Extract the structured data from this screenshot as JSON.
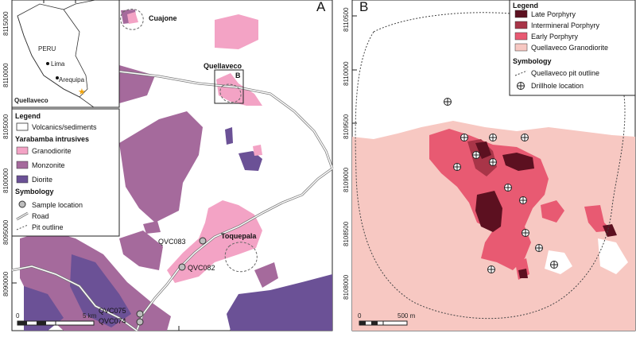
{
  "colors": {
    "granodiorite": "#f3a3c5",
    "monzonite": "#a56a9c",
    "diorite": "#6b5196",
    "late_porphyry": "#5c1020",
    "intermineral_porphyry": "#a83548",
    "early_porphyry": "#e85a72",
    "quellaveco_granodiorite": "#f7c8c2"
  },
  "panel_a": {
    "letter": "A",
    "y_ticks": [
      "8115000",
      "8110000",
      "8105000",
      "8100000",
      "8095000",
      "8090000"
    ],
    "inset": {
      "country": "PERU",
      "city1": "Lima",
      "city2": "Arequipa",
      "site": "Quellaveco"
    },
    "places": {
      "cuajone": "Cuajone",
      "quellaveco": "Quellaveco",
      "toquepala": "Toquepala",
      "box_b": "B"
    },
    "samples": [
      "QVC083",
      "QVC082",
      "QVC075",
      "QVC074"
    ],
    "scale": {
      "zero": "0",
      "max": "5 km"
    },
    "legend": {
      "title": "Legend",
      "volcanics": "Volcanics/sediments",
      "intrusives_title": "Yarabamba intrusives",
      "granodiorite": "Granodiorite",
      "monzonite": "Monzonite",
      "diorite": "Diorite",
      "symbology_title": "Symbology",
      "sample_location": "Sample location",
      "road": "Road",
      "pit_outline": "Pit outline"
    }
  },
  "panel_b": {
    "letter": "B",
    "y_ticks": [
      "8110500",
      "8110000",
      "8109500",
      "8109000",
      "8108500",
      "8108000"
    ],
    "scale": {
      "zero": "0",
      "max": "500 m"
    },
    "legend": {
      "title": "Legend",
      "late_porphyry": "Late Porphyry",
      "intermineral_porphyry": "Intermineral Porphyry",
      "early_porphyry": "Early Porphyry",
      "quellaveco_granodiorite": "Quellaveco Granodiorite",
      "symbology_title": "Symbology",
      "pit_outline": "Quellaveco pit outline",
      "drillhole": "Drillhole location"
    }
  }
}
